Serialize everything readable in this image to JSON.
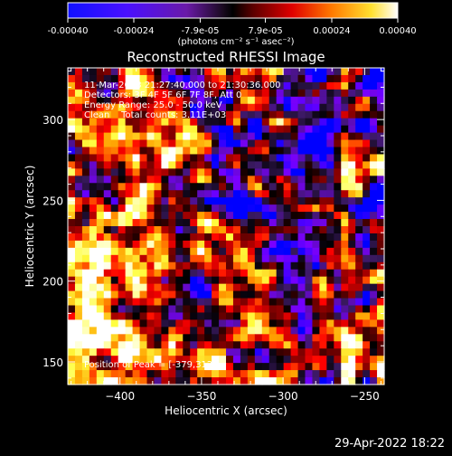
{
  "colorbar": {
    "tick_labels": [
      "-0.00040",
      "-0.00024",
      "-7.9e-05",
      "7.9e-05",
      "0.00024",
      "0.00040"
    ],
    "unit_label": "(photons cm⁻² s⁻¹ asec⁻²)",
    "range": [
      -0.0004,
      0.0004
    ]
  },
  "header": {
    "title": "Reconstructed RHESSI Image",
    "info_lines": [
      "11-Mar-2003 21:27:40.000 to 21:30:36.000",
      "Detectors: 3F 4F 5F 6F 7F 8F, Att 0",
      "Energy Range: 25.0 - 50.0 keV",
      "Clean    Total counts: 3.11E+03"
    ],
    "peak": "Position of Peak = [-379,312]"
  },
  "footer": {
    "timestamp": "29-Apr-2022 18:22"
  },
  "chart_data": {
    "type": "heatmap",
    "title": "Reconstructed RHESSI Image",
    "xlabel": "Heliocentric X (arcsec)",
    "ylabel": "Heliocentric Y (arcsec)",
    "xlim": [
      -432,
      -238
    ],
    "ylim": [
      136,
      332
    ],
    "x_ticks": [
      -400,
      -350,
      -300,
      -250
    ],
    "y_ticks": [
      150,
      200,
      250,
      300
    ],
    "x_tick_labels": [
      "−400",
      "−350",
      "−300",
      "−250"
    ],
    "y_tick_labels": [
      "150",
      "200",
      "250",
      "300"
    ],
    "colormap": [
      "#0000ff",
      "#7a00ff",
      "#3a1a60",
      "#000000",
      "#8a0000",
      "#ff0000",
      "#ffa000",
      "#ffff40",
      "#ffffff"
    ],
    "peak_position": [
      -379,
      312
    ],
    "grid": false
  }
}
